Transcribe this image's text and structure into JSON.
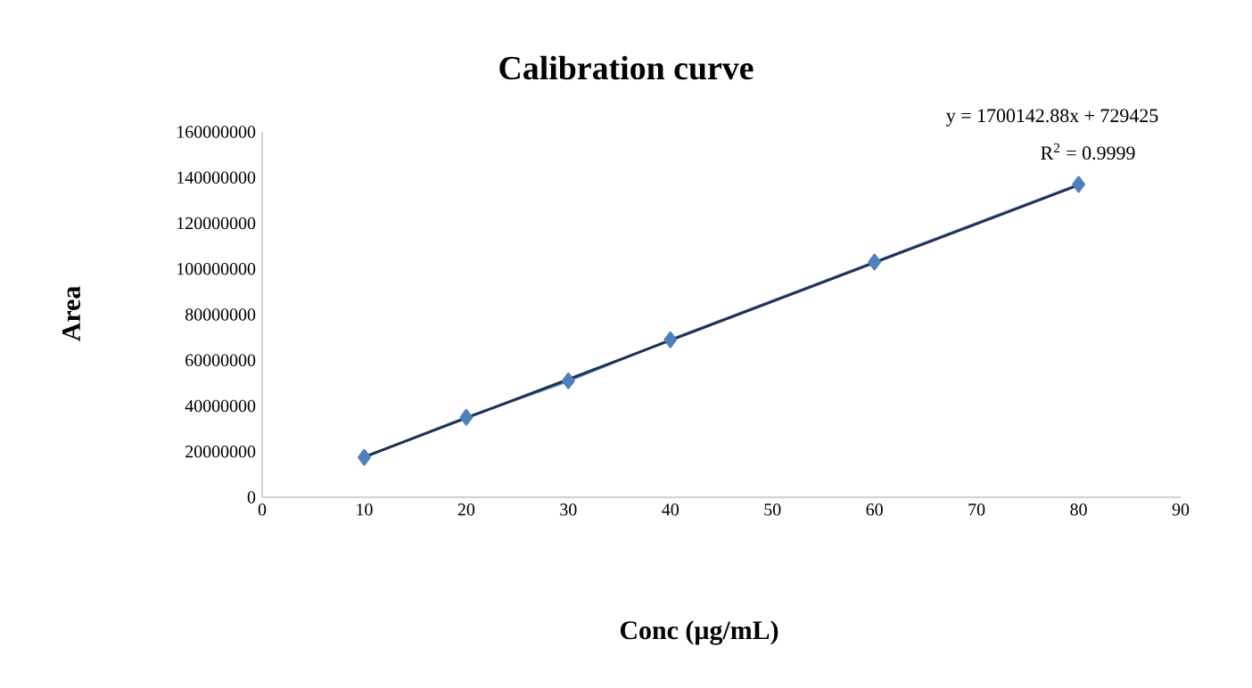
{
  "chart_data": {
    "type": "line",
    "title": "Calibration curve",
    "xlabel": "Conc (µg/mL)",
    "ylabel": "Area",
    "xlim": [
      0,
      90
    ],
    "xticks": [
      0,
      10,
      20,
      30,
      40,
      50,
      60,
      70,
      80,
      90
    ],
    "ylim": [
      0,
      160000000
    ],
    "yticks": [
      0,
      20000000,
      40000000,
      60000000,
      80000000,
      100000000,
      120000000,
      140000000,
      160000000
    ],
    "grid": false,
    "series": [
      {
        "color": "#4f81bd",
        "marker": "diamond",
        "x": [
          10,
          20,
          30,
          40,
          60,
          80
        ],
        "values": [
          17500000,
          35000000,
          51000000,
          69000000,
          103000000,
          137000000
        ]
      },
      {
        "type": "line",
        "color": "#1f3050",
        "marker": "none",
        "x": [
          10,
          80
        ],
        "values": [
          17700000,
          136700000
        ]
      }
    ],
    "annotations": [
      "y = 1700142.88x + 729425",
      "R$^{2}$ = 0.9999"
    ]
  }
}
